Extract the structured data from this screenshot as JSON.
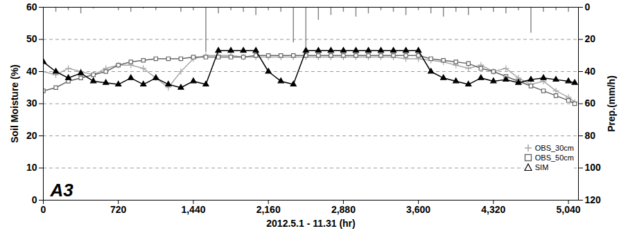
{
  "chart_data": {
    "type": "line",
    "xlabel": "2012.5.1 - 11.31 (hr)",
    "ylabel": "Soil Moisture (%)",
    "y2label": "Prep.(mm/h)",
    "annotations": [
      "A3"
    ],
    "x": [
      0,
      120,
      240,
      360,
      480,
      600,
      720,
      840,
      960,
      1080,
      1200,
      1320,
      1440,
      1560,
      1680,
      1800,
      1920,
      2040,
      2160,
      2280,
      2400,
      2520,
      2640,
      2760,
      2880,
      3000,
      3120,
      3240,
      3360,
      3480,
      3600,
      3720,
      3840,
      3960,
      4080,
      4200,
      4320,
      4440,
      4560,
      4680,
      4800,
      4920,
      5040,
      5100
    ],
    "xlim": [
      0,
      5136
    ],
    "xticks": [
      0,
      720,
      1440,
      2160,
      2880,
      3600,
      4320,
      5040
    ],
    "ylim": [
      0,
      60
    ],
    "yticks": [
      0,
      10,
      20,
      30,
      40,
      50,
      60
    ],
    "y2lim": [
      120,
      0
    ],
    "y2ticks": [
      0,
      20,
      40,
      60,
      80,
      100,
      120
    ],
    "grid": true,
    "legend": "bottom-right",
    "series": [
      {
        "name": "OBS_30cm",
        "color": "#a8a8a8",
        "marker": "plus",
        "values": [
          40,
          39,
          41,
          40,
          39,
          41,
          42,
          42,
          41,
          38,
          35,
          40,
          44,
          45,
          45,
          45,
          44.5,
          44.5,
          44.5,
          44.5,
          44.5,
          44.5,
          44.5,
          44.5,
          44.5,
          44.5,
          44.5,
          44.5,
          44.5,
          44,
          44,
          43.5,
          43,
          42,
          41,
          42,
          40,
          41,
          38,
          36,
          37,
          34,
          32,
          30.5
        ]
      },
      {
        "name": "OBS_50cm",
        "color": "#666666",
        "marker": "square",
        "values": [
          34,
          35,
          37,
          38,
          39,
          40,
          42,
          43,
          43.5,
          44,
          44,
          44,
          44.5,
          44.5,
          44.5,
          44.5,
          44.5,
          45,
          45,
          45,
          45,
          45,
          45,
          45,
          45,
          45,
          45,
          45,
          45,
          45,
          45,
          44,
          43.5,
          43,
          42.5,
          41,
          40,
          38.5,
          37,
          35.5,
          34,
          32.5,
          31,
          30
        ]
      },
      {
        "name": "SIM",
        "color": "#000000",
        "marker": "triangle",
        "values": [
          43,
          40,
          38,
          39.5,
          37,
          36.5,
          36,
          38,
          36,
          38,
          36,
          35,
          37,
          36,
          46.5,
          46.5,
          46.5,
          46.5,
          40,
          37,
          36,
          46.5,
          46.5,
          46.5,
          46.5,
          46.5,
          46.5,
          46.5,
          46.5,
          46.5,
          46.5,
          40,
          38,
          37,
          36,
          38,
          37,
          37.5,
          36.5,
          37.5,
          38,
          37.5,
          37,
          36.5
        ]
      },
      {
        "name": "Prep.",
        "color": "#888888",
        "type": "bar",
        "axis": "y2",
        "values": [
          0,
          3,
          2,
          4,
          1,
          0,
          2,
          3,
          1,
          2,
          0,
          3,
          2,
          28,
          4,
          2,
          3,
          5,
          2,
          3,
          22,
          25,
          8,
          5,
          3,
          6,
          4,
          2,
          3,
          5,
          2,
          4,
          6,
          3,
          5,
          2,
          3,
          4,
          2,
          16,
          3,
          2,
          3,
          0
        ]
      }
    ]
  }
}
